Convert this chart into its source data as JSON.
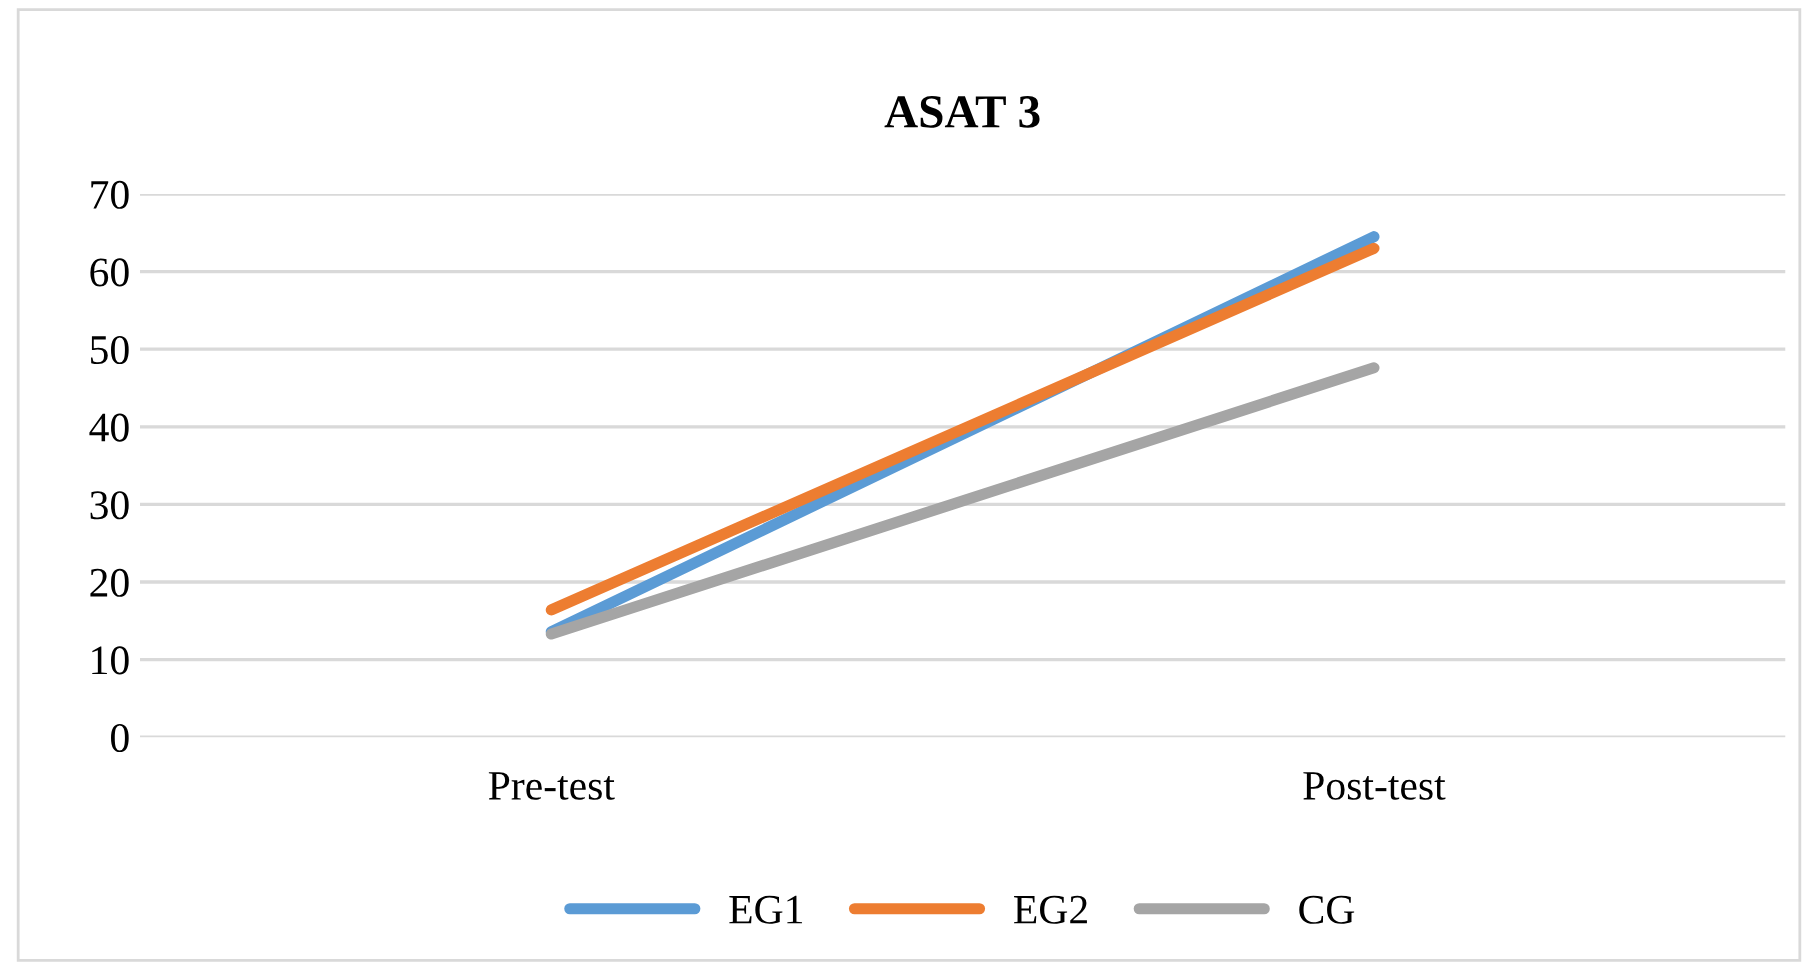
{
  "chart_data": {
    "type": "line",
    "title": "ASAT 3",
    "categories": [
      "Pre-test",
      "Post-test"
    ],
    "series": [
      {
        "name": "EG1",
        "color": "#5b9bd5",
        "values": [
          13.6,
          64.5
        ]
      },
      {
        "name": "EG2",
        "color": "#ed7d31",
        "values": [
          16.4,
          63.0
        ]
      },
      {
        "name": "CG",
        "color": "#a5a5a5",
        "values": [
          13.3,
          47.6
        ]
      }
    ],
    "ylim": [
      0,
      70
    ],
    "yticks": [
      0,
      10,
      20,
      30,
      40,
      50,
      60,
      70
    ],
    "grid": "y",
    "legend": "bottom",
    "marker": "none",
    "line_style": "solid"
  }
}
